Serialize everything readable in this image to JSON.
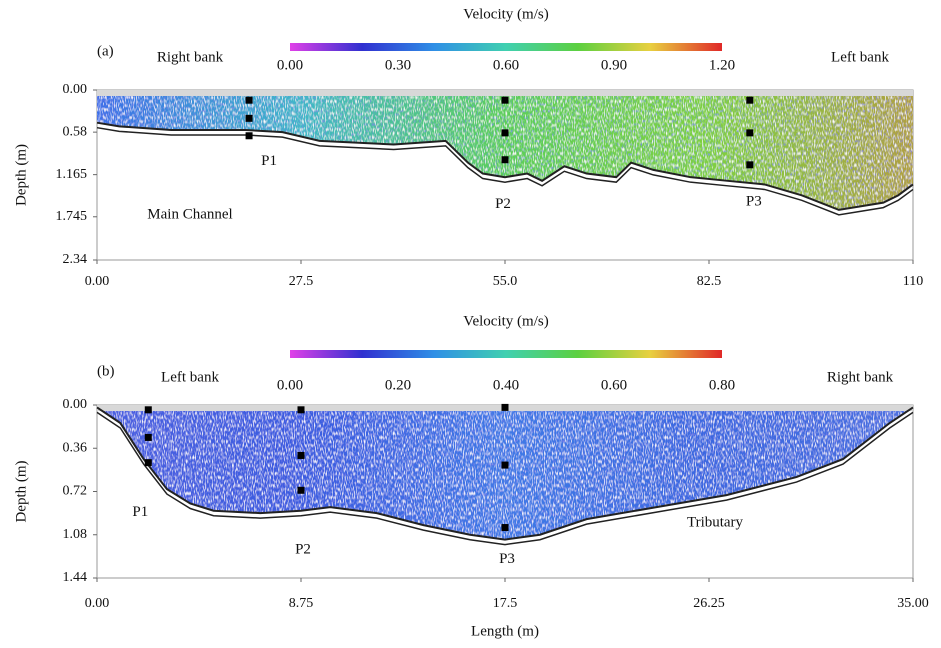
{
  "chart_data": [
    {
      "type": "cross-section",
      "panel": "(a)",
      "colorbar_title": "Velocity (m/s)",
      "clim": [
        0,
        1.2
      ],
      "cticks": [
        {
          "value": 0,
          "label": "0.00"
        },
        {
          "value": 0.3,
          "label": "0.30"
        },
        {
          "value": 0.6,
          "label": "0.60"
        },
        {
          "value": 0.9,
          "label": "0.90"
        },
        {
          "value": 1.2,
          "label": "1.20"
        }
      ],
      "colormap": [
        "#e040e8",
        "#3030d0",
        "#2f8fe6",
        "#40d0b0",
        "#5cd040",
        "#e8d040",
        "#e02828"
      ],
      "field_colors": [
        "#3a70e8",
        "#3fb8c8",
        "#5ccf58",
        "#7fd040",
        "#b0a040"
      ],
      "bank_left": "Right bank",
      "bank_right": "Left bank",
      "annotation": "Main Channel",
      "y_label": "Depth (m)",
      "xlim": [
        0,
        110
      ],
      "ylim": [
        0,
        2.34
      ],
      "xticks": [
        {
          "value": 0,
          "label": "0.00"
        },
        27.5,
        {
          "value": 55,
          "label": "55.0"
        },
        82.5,
        110
      ],
      "yticks": [
        {
          "value": 0,
          "label": "0.00"
        },
        0.58,
        1.165,
        1.745,
        2.34
      ],
      "bed": {
        "x": [
          0,
          3,
          10,
          20,
          25,
          30,
          40,
          47,
          50,
          52,
          55,
          58,
          60,
          63,
          66,
          70,
          72,
          75,
          80,
          85,
          90,
          95,
          100,
          103,
          106,
          108,
          110
        ],
        "values": [
          0.45,
          0.5,
          0.55,
          0.55,
          0.58,
          0.7,
          0.75,
          0.7,
          1.0,
          1.15,
          1.2,
          1.15,
          1.25,
          1.05,
          1.15,
          1.2,
          1.0,
          1.1,
          1.2,
          1.25,
          1.3,
          1.45,
          1.65,
          1.6,
          1.55,
          1.45,
          1.3
        ]
      },
      "profiles": [
        {
          "name": "P1",
          "x": 20.5,
          "values": [
            0.14,
            0.39,
            0.63
          ]
        },
        {
          "name": "P2",
          "x": 55,
          "values": [
            0.14,
            0.59,
            0.96
          ]
        },
        {
          "name": "P3",
          "x": 88,
          "values": [
            0.14,
            0.59,
            1.03
          ]
        }
      ]
    },
    {
      "type": "cross-section",
      "panel": "(b)",
      "colorbar_title": "Velocity (m/s)",
      "clim": [
        0,
        0.8
      ],
      "cticks": [
        {
          "value": 0,
          "label": "0.00"
        },
        {
          "value": 0.2,
          "label": "0.20"
        },
        {
          "value": 0.4,
          "label": "0.40"
        },
        {
          "value": 0.6,
          "label": "0.60"
        },
        {
          "value": 0.8,
          "label": "0.80"
        }
      ],
      "colormap": [
        "#e040e8",
        "#3030d0",
        "#2f8fe6",
        "#40d0b0",
        "#5cd040",
        "#e8d040",
        "#e02828"
      ],
      "field_colors": [
        "#4a60e0",
        "#3a5ce0",
        "#3f7ae6",
        "#3a68e0",
        "#4a70e0"
      ],
      "bank_left": "Left bank",
      "bank_right": "Right bank",
      "annotation": "Tributary",
      "y_label": "Depth (m)",
      "x_label": "Length (m)",
      "xlim": [
        0,
        35
      ],
      "ylim": [
        0,
        1.44
      ],
      "xticks": [
        {
          "value": 0,
          "label": "0.00"
        },
        8.75,
        17.5,
        26.25,
        {
          "value": 35,
          "label": "35.00"
        }
      ],
      "yticks": [
        {
          "value": 0,
          "label": "0.00"
        },
        0.36,
        0.72,
        1.08,
        1.44
      ],
      "bed": {
        "x": [
          0,
          1,
          2,
          3,
          4,
          5,
          7,
          8.75,
          10,
          12,
          14,
          16,
          17.5,
          19,
          21,
          24,
          27,
          30,
          32,
          34,
          35
        ],
        "values": [
          0.02,
          0.15,
          0.45,
          0.7,
          0.82,
          0.88,
          0.9,
          0.88,
          0.85,
          0.9,
          1.0,
          1.08,
          1.12,
          1.08,
          0.95,
          0.85,
          0.75,
          0.6,
          0.45,
          0.15,
          0.02
        ]
      },
      "profiles": [
        {
          "name": "P1",
          "x": 2.2,
          "values": [
            0.04,
            0.27,
            0.48
          ]
        },
        {
          "name": "P2",
          "x": 8.75,
          "values": [
            0.04,
            0.42,
            0.71
          ]
        },
        {
          "name": "P3",
          "x": 17.5,
          "values": [
            0.02,
            0.5,
            1.02
          ]
        }
      ]
    }
  ]
}
